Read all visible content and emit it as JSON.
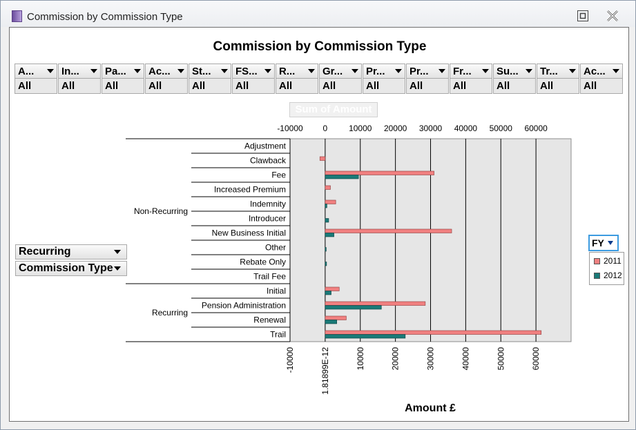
{
  "window": {
    "title": "Commission by Commission Type",
    "restore_icon": "restore-icon",
    "close_icon": "close-icon"
  },
  "chart_title": "Commission by Commission Type",
  "filters": [
    {
      "label": "A...",
      "value": "All"
    },
    {
      "label": "In...",
      "value": "All"
    },
    {
      "label": "Pa...",
      "value": "All"
    },
    {
      "label": "Ac...",
      "value": "All"
    },
    {
      "label": "St...",
      "value": "All"
    },
    {
      "label": "FS...",
      "value": "All"
    },
    {
      "label": "R...",
      "value": "All"
    },
    {
      "label": "Gr...",
      "value": "All"
    },
    {
      "label": "Pr...",
      "value": "All"
    },
    {
      "label": "Pr...",
      "value": "All"
    },
    {
      "label": "Fr...",
      "value": "All"
    },
    {
      "label": "Su...",
      "value": "All"
    },
    {
      "label": "Tr...",
      "value": "All"
    },
    {
      "label": "Ac...",
      "value": "All"
    }
  ],
  "data_field_button": "Sum of Amount",
  "row_fields": [
    "Recurring",
    "Commission Type"
  ],
  "legend": {
    "field": "FY"
  },
  "chart_data": {
    "type": "bar",
    "orientation": "horizontal",
    "groups": [
      {
        "name": "Non-Recurring",
        "categories": [
          "Adjustment",
          "Clawback",
          "Fee",
          "Increased Premium",
          "Indemnity",
          "Introducer",
          "New Business Initial",
          "Other",
          "Rebate Only",
          "Trail Fee"
        ]
      },
      {
        "name": "Recurring",
        "categories": [
          "Initial",
          "Pension Administration",
          "Renewal",
          "Trail"
        ]
      }
    ],
    "categories": [
      "Adjustment",
      "Clawback",
      "Fee",
      "Increased Premium",
      "Indemnity",
      "Introducer",
      "New Business Initial",
      "Other",
      "Rebate Only",
      "Trail Fee",
      "Initial",
      "Pension Administration",
      "Renewal",
      "Trail"
    ],
    "series": [
      {
        "name": "2011",
        "color": "#f08080",
        "values": [
          0,
          -1500,
          31000,
          1500,
          3000,
          0,
          36000,
          0,
          0,
          0,
          4000,
          28500,
          6000,
          61500
        ]
      },
      {
        "name": "2012",
        "color": "#1a7a78",
        "values": [
          0,
          0,
          9500,
          0,
          500,
          1000,
          2500,
          300,
          400,
          0,
          1700,
          16000,
          3300,
          22800
        ]
      }
    ],
    "x_ticks_top": [
      "-10000",
      "0",
      "10000",
      "20000",
      "30000",
      "40000",
      "50000",
      "60000"
    ],
    "x_ticks_bottom": [
      "-10000",
      "1.81899E-12",
      "10000",
      "20000",
      "30000",
      "40000",
      "50000",
      "60000"
    ],
    "xlim": [
      -10000,
      70000
    ],
    "xlabel": "Amount £",
    "grid": true,
    "legend_position": "right"
  }
}
